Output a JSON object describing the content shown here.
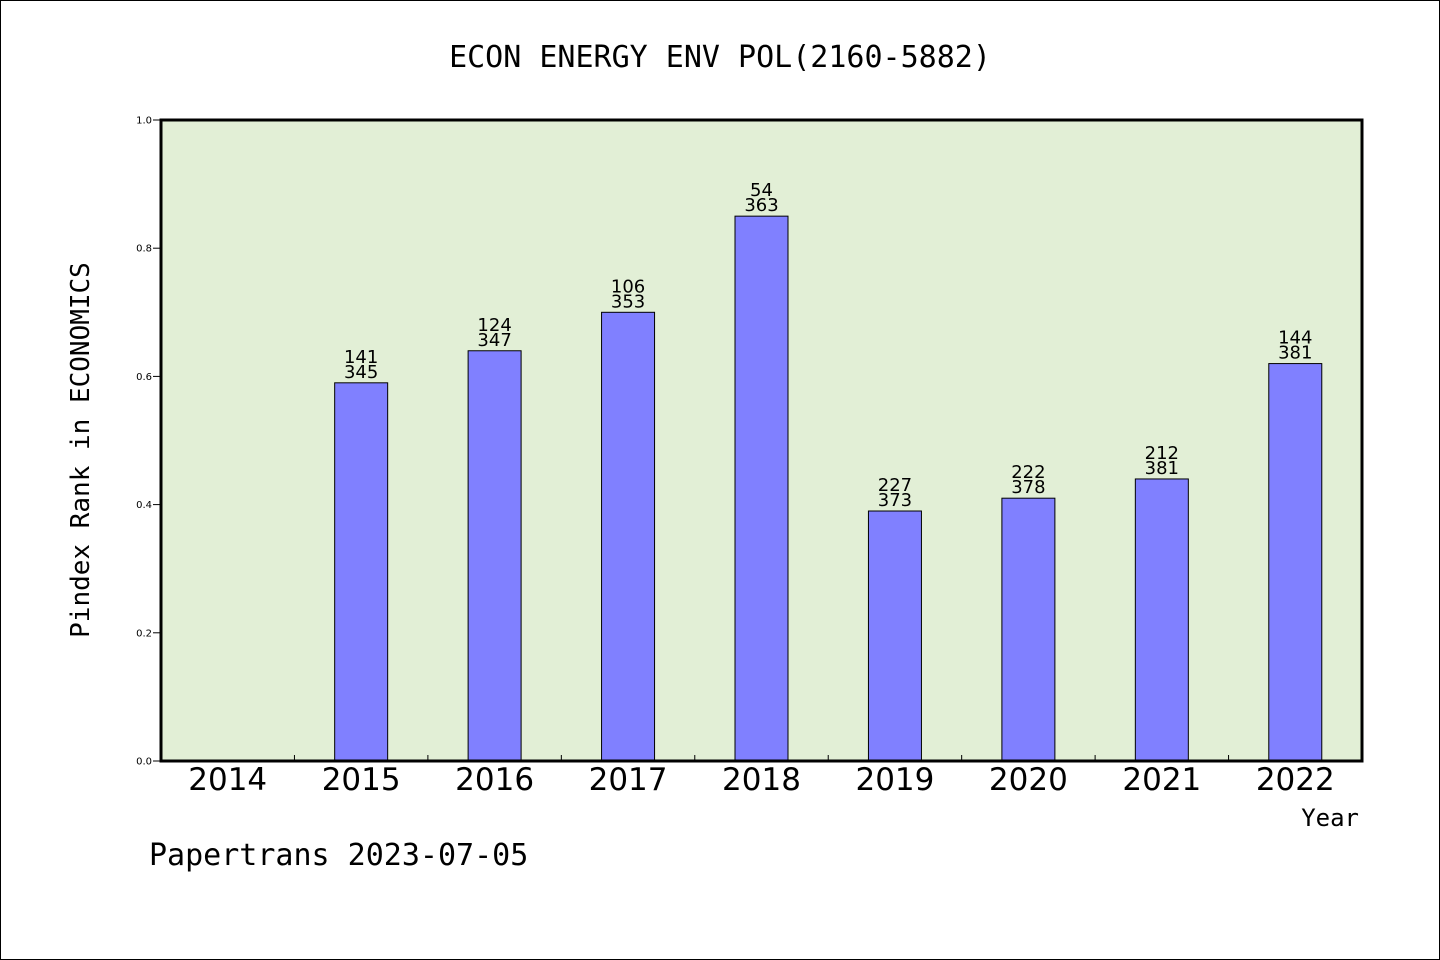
{
  "chart_data": {
    "type": "bar",
    "title": "ECON ENERGY ENV POL(2160-5882)",
    "xlabel": "Year",
    "ylabel": "Pindex Rank in ECONOMICS",
    "ylim": [
      0,
      1.0
    ],
    "yticks": [
      "0.0",
      "0.2",
      "0.4",
      "0.6",
      "0.8",
      "1.0"
    ],
    "categories": [
      "2014",
      "2015",
      "2016",
      "2017",
      "2018",
      "2019",
      "2020",
      "2021",
      "2022"
    ],
    "series": [
      {
        "values": [
          null,
          0.59,
          0.64,
          0.7,
          0.85,
          0.39,
          0.41,
          0.44,
          0.62
        ],
        "labels_top": [
          "",
          "141",
          "124",
          "106",
          "54",
          "227",
          "222",
          "212",
          "144"
        ],
        "labels_bottom": [
          "",
          "345",
          "347",
          "353",
          "363",
          "373",
          "378",
          "381",
          "381"
        ]
      }
    ],
    "colors": {
      "bar": "#8080ff",
      "plot_background": "#e2efd6",
      "axis": "#000000"
    },
    "grid": false,
    "footer": "Papertrans 2023-07-05"
  }
}
